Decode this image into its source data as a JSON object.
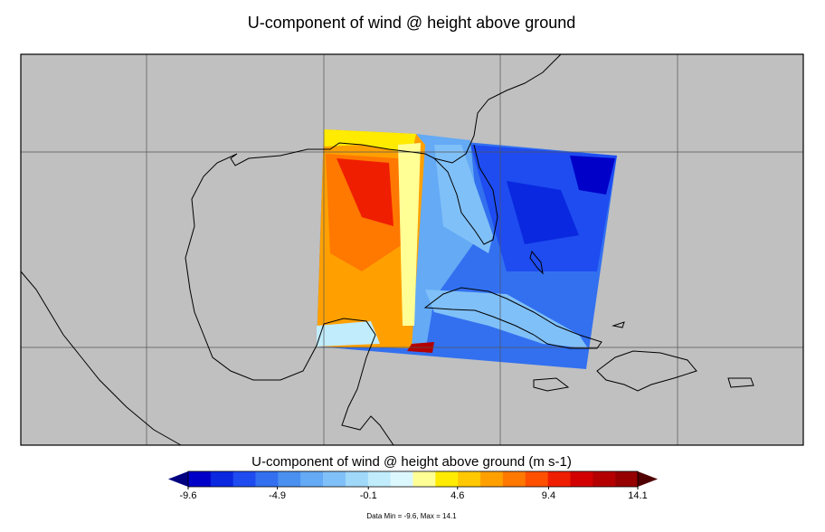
{
  "title": "U-component of wind @ height above ground",
  "colorbar": {
    "label": "U-component of wind @ height above ground (m s-1)",
    "ticks": [
      -9.6,
      -4.9,
      -0.1,
      4.6,
      9.4,
      14.1
    ],
    "colors": [
      "#0000c8",
      "#0a28e0",
      "#1e4cf0",
      "#3270f0",
      "#4a90f0",
      "#64aaf5",
      "#80c0f8",
      "#a0d8fa",
      "#c0ecfc",
      "#dcf8ff",
      "#ffff96",
      "#ffeb00",
      "#ffc800",
      "#ffa000",
      "#ff7800",
      "#ff5000",
      "#f01e00",
      "#d20000",
      "#b40000",
      "#960000"
    ],
    "under_color": "#000080",
    "over_color": "#500000"
  },
  "footer": "Data Min = -9.6, Max = 14.1"
}
